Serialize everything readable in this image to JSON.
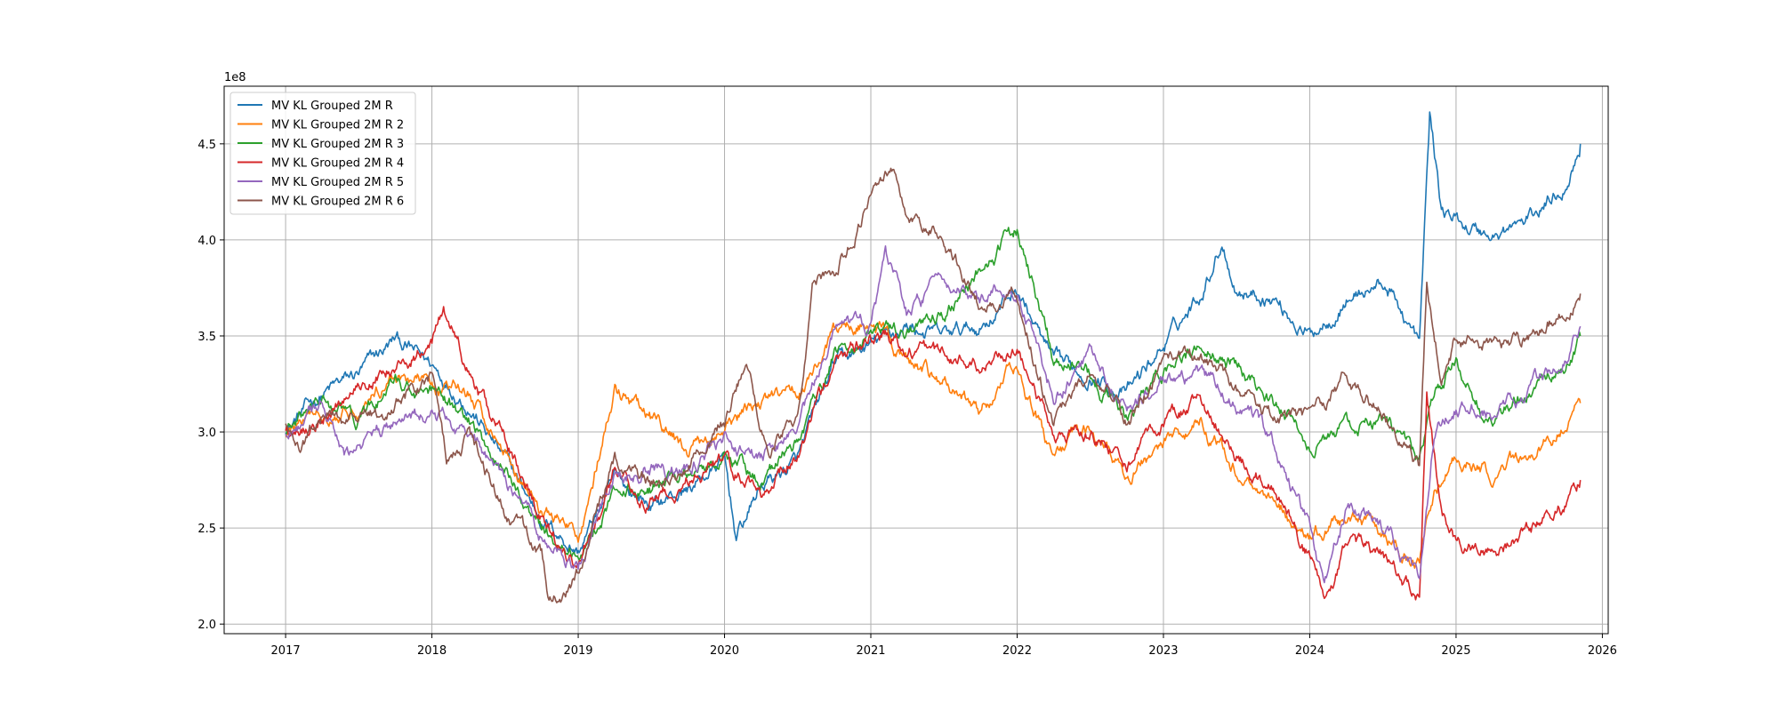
{
  "chart_data": {
    "type": "line",
    "title": "",
    "xlabel": "",
    "ylabel": "",
    "y_offset_label": "1e8",
    "xlim": [
      2016.58,
      2026.04
    ],
    "ylim": [
      1.95,
      4.8
    ],
    "x_ticks": [
      2017,
      2018,
      2019,
      2020,
      2021,
      2022,
      2023,
      2024,
      2025,
      2026
    ],
    "x_tick_labels": [
      "2017",
      "2018",
      "2019",
      "2020",
      "2021",
      "2022",
      "2023",
      "2024",
      "2025",
      "2026"
    ],
    "y_ticks": [
      2.0,
      2.5,
      3.0,
      3.5,
      4.0,
      4.5
    ],
    "y_tick_labels": [
      "2.0",
      "2.5",
      "3.0",
      "3.5",
      "4.0",
      "4.5"
    ],
    "grid": true,
    "legend_position": "upper-left",
    "series": [
      {
        "name": "MV KL Grouped 2M R",
        "color": "#1f77b4",
        "points": [
          [
            2017.0,
            3.02
          ],
          [
            2017.25,
            3.2
          ],
          [
            2017.5,
            3.3
          ],
          [
            2017.75,
            3.48
          ],
          [
            2018.0,
            3.35
          ],
          [
            2018.25,
            3.15
          ],
          [
            2018.5,
            2.85
          ],
          [
            2018.75,
            2.55
          ],
          [
            2019.0,
            2.38
          ],
          [
            2019.25,
            2.75
          ],
          [
            2019.5,
            2.62
          ],
          [
            2019.75,
            2.7
          ],
          [
            2020.0,
            2.85
          ],
          [
            2020.08,
            2.45
          ],
          [
            2020.25,
            2.72
          ],
          [
            2020.5,
            2.85
          ],
          [
            2020.75,
            3.35
          ],
          [
            2021.0,
            3.45
          ],
          [
            2021.25,
            3.55
          ],
          [
            2021.5,
            3.5
          ],
          [
            2021.75,
            3.55
          ],
          [
            2022.0,
            3.75
          ],
          [
            2022.25,
            3.35
          ],
          [
            2022.5,
            3.3
          ],
          [
            2022.75,
            3.2
          ],
          [
            2023.0,
            3.45
          ],
          [
            2023.25,
            3.72
          ],
          [
            2023.4,
            4.0
          ],
          [
            2023.5,
            3.75
          ],
          [
            2023.75,
            3.7
          ],
          [
            2024.0,
            3.5
          ],
          [
            2024.25,
            3.7
          ],
          [
            2024.5,
            3.78
          ],
          [
            2024.65,
            3.6
          ],
          [
            2024.75,
            3.45
          ],
          [
            2024.82,
            4.65
          ],
          [
            2024.9,
            4.15
          ],
          [
            2025.0,
            4.1
          ],
          [
            2025.25,
            4.02
          ],
          [
            2025.5,
            4.1
          ],
          [
            2025.75,
            4.3
          ],
          [
            2025.85,
            4.5
          ]
        ]
      },
      {
        "name": "MV KL Grouped 2M R 2",
        "color": "#ff7f0e",
        "points": [
          [
            2017.0,
            3.0
          ],
          [
            2017.25,
            3.1
          ],
          [
            2017.5,
            3.15
          ],
          [
            2017.75,
            3.3
          ],
          [
            2018.0,
            3.25
          ],
          [
            2018.25,
            3.2
          ],
          [
            2018.5,
            2.9
          ],
          [
            2018.75,
            2.6
          ],
          [
            2019.0,
            2.45
          ],
          [
            2019.25,
            3.2
          ],
          [
            2019.5,
            3.05
          ],
          [
            2019.75,
            2.9
          ],
          [
            2020.0,
            3.0
          ],
          [
            2020.25,
            3.15
          ],
          [
            2020.5,
            3.2
          ],
          [
            2020.75,
            3.5
          ],
          [
            2021.0,
            3.6
          ],
          [
            2021.25,
            3.35
          ],
          [
            2021.5,
            3.25
          ],
          [
            2021.75,
            3.1
          ],
          [
            2022.0,
            3.35
          ],
          [
            2022.25,
            2.85
          ],
          [
            2022.5,
            3.05
          ],
          [
            2022.75,
            2.75
          ],
          [
            2023.0,
            2.95
          ],
          [
            2023.25,
            3.05
          ],
          [
            2023.5,
            2.8
          ],
          [
            2023.75,
            2.65
          ],
          [
            2024.0,
            2.45
          ],
          [
            2024.25,
            2.55
          ],
          [
            2024.5,
            2.45
          ],
          [
            2024.75,
            2.3
          ],
          [
            2024.85,
            2.7
          ],
          [
            2025.0,
            2.85
          ],
          [
            2025.25,
            2.8
          ],
          [
            2025.5,
            2.85
          ],
          [
            2025.75,
            3.05
          ],
          [
            2025.85,
            3.15
          ]
        ]
      },
      {
        "name": "MV KL Grouped 2M R 3",
        "color": "#2ca02c",
        "points": [
          [
            2017.0,
            3.0
          ],
          [
            2017.25,
            3.15
          ],
          [
            2017.5,
            3.05
          ],
          [
            2017.75,
            3.25
          ],
          [
            2018.0,
            3.2
          ],
          [
            2018.25,
            3.05
          ],
          [
            2018.5,
            2.8
          ],
          [
            2018.75,
            2.5
          ],
          [
            2019.0,
            2.35
          ],
          [
            2019.25,
            2.7
          ],
          [
            2019.5,
            2.7
          ],
          [
            2019.75,
            2.8
          ],
          [
            2020.0,
            2.9
          ],
          [
            2020.25,
            2.75
          ],
          [
            2020.5,
            2.95
          ],
          [
            2020.75,
            3.4
          ],
          [
            2021.0,
            3.5
          ],
          [
            2021.25,
            3.5
          ],
          [
            2021.5,
            3.6
          ],
          [
            2021.75,
            3.85
          ],
          [
            2022.0,
            4.05
          ],
          [
            2022.25,
            3.4
          ],
          [
            2022.5,
            3.3
          ],
          [
            2022.75,
            3.05
          ],
          [
            2023.0,
            3.3
          ],
          [
            2023.25,
            3.45
          ],
          [
            2023.5,
            3.35
          ],
          [
            2023.75,
            3.15
          ],
          [
            2024.0,
            2.95
          ],
          [
            2024.25,
            3.0
          ],
          [
            2024.5,
            3.05
          ],
          [
            2024.75,
            2.85
          ],
          [
            2024.85,
            3.2
          ],
          [
            2025.0,
            3.35
          ],
          [
            2025.25,
            3.05
          ],
          [
            2025.5,
            3.2
          ],
          [
            2025.75,
            3.35
          ],
          [
            2025.85,
            3.5
          ]
        ]
      },
      {
        "name": "MV KL Grouped 2M R 4",
        "color": "#d62728",
        "points": [
          [
            2017.0,
            3.02
          ],
          [
            2017.25,
            3.05
          ],
          [
            2017.5,
            3.25
          ],
          [
            2017.75,
            3.35
          ],
          [
            2018.0,
            3.45
          ],
          [
            2018.08,
            3.65
          ],
          [
            2018.25,
            3.3
          ],
          [
            2018.5,
            2.95
          ],
          [
            2018.75,
            2.55
          ],
          [
            2019.0,
            2.3
          ],
          [
            2019.25,
            2.8
          ],
          [
            2019.5,
            2.65
          ],
          [
            2019.75,
            2.75
          ],
          [
            2020.0,
            2.85
          ],
          [
            2020.25,
            2.7
          ],
          [
            2020.5,
            2.9
          ],
          [
            2020.75,
            3.35
          ],
          [
            2021.0,
            3.5
          ],
          [
            2021.25,
            3.45
          ],
          [
            2021.5,
            3.4
          ],
          [
            2021.75,
            3.35
          ],
          [
            2022.0,
            3.45
          ],
          [
            2022.25,
            2.95
          ],
          [
            2022.5,
            3.0
          ],
          [
            2022.75,
            2.85
          ],
          [
            2023.0,
            3.05
          ],
          [
            2023.25,
            3.15
          ],
          [
            2023.5,
            2.9
          ],
          [
            2023.75,
            2.7
          ],
          [
            2024.0,
            2.35
          ],
          [
            2024.1,
            2.15
          ],
          [
            2024.25,
            2.4
          ],
          [
            2024.5,
            2.35
          ],
          [
            2024.75,
            2.12
          ],
          [
            2024.8,
            3.2
          ],
          [
            2024.9,
            2.55
          ],
          [
            2025.0,
            2.45
          ],
          [
            2025.25,
            2.35
          ],
          [
            2025.5,
            2.5
          ],
          [
            2025.75,
            2.62
          ],
          [
            2025.85,
            2.75
          ]
        ]
      },
      {
        "name": "MV KL Grouped 2M R 5",
        "color": "#9467bd",
        "points": [
          [
            2017.0,
            3.0
          ],
          [
            2017.25,
            3.1
          ],
          [
            2017.4,
            2.85
          ],
          [
            2017.75,
            3.05
          ],
          [
            2018.0,
            3.1
          ],
          [
            2018.25,
            3.0
          ],
          [
            2018.5,
            2.75
          ],
          [
            2018.75,
            2.45
          ],
          [
            2019.0,
            2.3
          ],
          [
            2019.25,
            2.75
          ],
          [
            2019.5,
            2.8
          ],
          [
            2019.75,
            2.8
          ],
          [
            2020.0,
            2.95
          ],
          [
            2020.25,
            2.85
          ],
          [
            2020.5,
            3.05
          ],
          [
            2020.75,
            3.5
          ],
          [
            2021.0,
            3.55
          ],
          [
            2021.1,
            3.9
          ],
          [
            2021.25,
            3.6
          ],
          [
            2021.5,
            3.8
          ],
          [
            2021.75,
            3.7
          ],
          [
            2022.0,
            3.75
          ],
          [
            2022.25,
            3.2
          ],
          [
            2022.5,
            3.4
          ],
          [
            2022.75,
            3.1
          ],
          [
            2023.0,
            3.25
          ],
          [
            2023.25,
            3.3
          ],
          [
            2023.5,
            3.15
          ],
          [
            2023.75,
            2.95
          ],
          [
            2024.0,
            2.5
          ],
          [
            2024.1,
            2.2
          ],
          [
            2024.25,
            2.6
          ],
          [
            2024.5,
            2.5
          ],
          [
            2024.75,
            2.25
          ],
          [
            2024.85,
            3.0
          ],
          [
            2025.0,
            3.15
          ],
          [
            2025.25,
            3.1
          ],
          [
            2025.5,
            3.2
          ],
          [
            2025.75,
            3.4
          ],
          [
            2025.85,
            3.55
          ]
        ]
      },
      {
        "name": "MV KL Grouped 2M R 6",
        "color": "#8c564b",
        "points": [
          [
            2017.0,
            3.05
          ],
          [
            2017.1,
            2.9
          ],
          [
            2017.25,
            3.1
          ],
          [
            2017.5,
            3.05
          ],
          [
            2017.75,
            3.15
          ],
          [
            2018.0,
            3.3
          ],
          [
            2018.1,
            2.85
          ],
          [
            2018.25,
            3.0
          ],
          [
            2018.5,
            2.6
          ],
          [
            2018.75,
            2.35
          ],
          [
            2018.8,
            2.1
          ],
          [
            2019.0,
            2.25
          ],
          [
            2019.25,
            2.85
          ],
          [
            2019.5,
            2.75
          ],
          [
            2019.75,
            2.85
          ],
          [
            2020.0,
            3.05
          ],
          [
            2020.15,
            3.35
          ],
          [
            2020.3,
            2.9
          ],
          [
            2020.5,
            3.1
          ],
          [
            2020.6,
            3.8
          ],
          [
            2020.75,
            3.85
          ],
          [
            2021.0,
            4.2
          ],
          [
            2021.15,
            4.35
          ],
          [
            2021.25,
            4.1
          ],
          [
            2021.5,
            4.0
          ],
          [
            2021.75,
            3.65
          ],
          [
            2022.0,
            3.7
          ],
          [
            2022.25,
            3.05
          ],
          [
            2022.5,
            3.35
          ],
          [
            2022.75,
            3.05
          ],
          [
            2023.0,
            3.35
          ],
          [
            2023.25,
            3.4
          ],
          [
            2023.5,
            3.2
          ],
          [
            2023.75,
            3.1
          ],
          [
            2024.0,
            3.05
          ],
          [
            2024.25,
            3.3
          ],
          [
            2024.5,
            3.1
          ],
          [
            2024.75,
            2.8
          ],
          [
            2024.8,
            3.8
          ],
          [
            2024.9,
            3.3
          ],
          [
            2025.0,
            3.5
          ],
          [
            2025.25,
            3.45
          ],
          [
            2025.5,
            3.5
          ],
          [
            2025.75,
            3.65
          ],
          [
            2025.85,
            3.72
          ]
        ]
      }
    ]
  }
}
